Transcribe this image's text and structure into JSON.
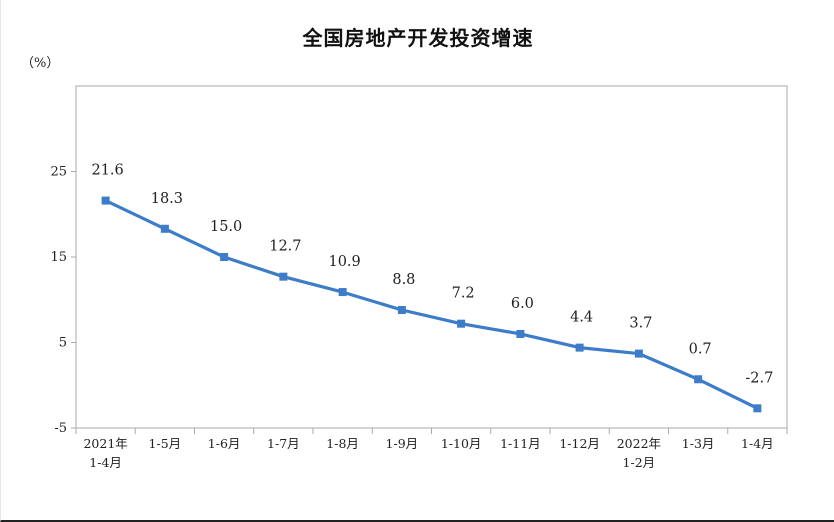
{
  "chart_data": {
    "type": "line",
    "title": "全国房地产开发投资增速",
    "unit_label": "（%）",
    "categories": [
      [
        "2021年",
        "1-4月"
      ],
      [
        "1-5月"
      ],
      [
        "1-6月"
      ],
      [
        "1-7月"
      ],
      [
        "1-8月"
      ],
      [
        "1-9月"
      ],
      [
        "1-10月"
      ],
      [
        "1-11月"
      ],
      [
        "1-12月"
      ],
      [
        "2022年",
        "1-2月"
      ],
      [
        "1-3月"
      ],
      [
        "1-4月"
      ]
    ],
    "series": [
      {
        "values": [
          21.6,
          18.3,
          15.0,
          12.7,
          10.9,
          8.8,
          7.2,
          6.0,
          4.4,
          3.7,
          0.7,
          -2.7
        ]
      }
    ],
    "data_labels": [
      "21.6",
      "18.3",
      "15.0",
      "12.7",
      "10.9",
      "8.8",
      "7.2",
      "6.0",
      "4.4",
      "3.7",
      "0.7",
      "-2.7"
    ],
    "yticks": [
      "25",
      "15",
      "5",
      "-5"
    ],
    "ylim": [
      -5,
      35
    ],
    "grid": false,
    "legend": "none",
    "line_color": "#3D7CC9",
    "axis_color": "#AAAAAA"
  }
}
